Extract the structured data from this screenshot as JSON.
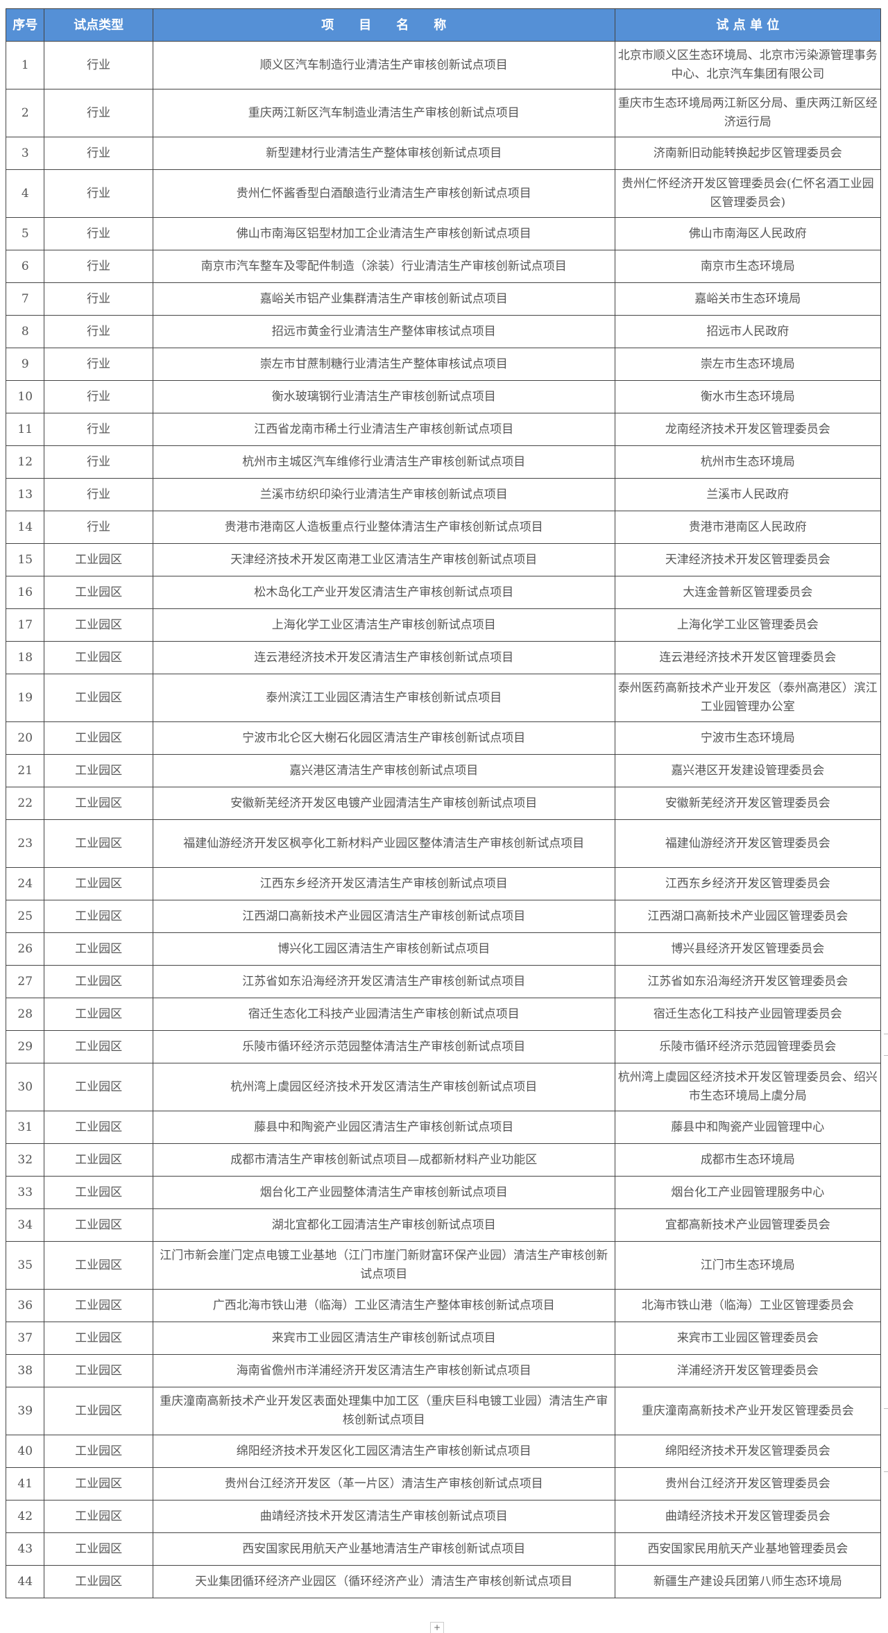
{
  "colors": {
    "header_bg": "#5590d6",
    "header_text": "#ffffff"
  },
  "header": {
    "index": "序号",
    "type": "试点类型",
    "project": "项　　目　　名　　称",
    "unit": "试 点 单 位"
  },
  "rows": [
    {
      "no": "1",
      "type": "行业",
      "project": "顺义区汽车制造行业清洁生产审核创新试点项目",
      "unit": "北京市顺义区生态环境局、北京市污染源管理事务中心、北京汽车集团有限公司"
    },
    {
      "no": "2",
      "type": "行业",
      "project": "重庆两江新区汽车制造业清洁生产审核创新试点项目",
      "unit": "重庆市生态环境局两江新区分局、重庆两江新区经济运行局"
    },
    {
      "no": "3",
      "type": "行业",
      "project": "新型建材行业清洁生产整体审核创新试点项目",
      "unit": "济南新旧动能转换起步区管理委员会"
    },
    {
      "no": "4",
      "type": "行业",
      "project": "贵州仁怀酱香型白酒酿造行业清洁生产审核创新试点项目",
      "unit": "贵州仁怀经济开发区管理委员会(仁怀名酒工业园区管理委员会)"
    },
    {
      "no": "5",
      "type": "行业",
      "project": "佛山市南海区铝型材加工企业清洁生产审核创新试点项目",
      "unit": "佛山市南海区人民政府"
    },
    {
      "no": "6",
      "type": "行业",
      "project": "南京市汽车整车及零配件制造（涂装）行业清洁生产审核创新试点项目",
      "unit": "南京市生态环境局"
    },
    {
      "no": "7",
      "type": "行业",
      "project": "嘉峪关市铝产业集群清洁生产审核创新试点项目",
      "unit": "嘉峪关市生态环境局"
    },
    {
      "no": "8",
      "type": "行业",
      "project": "招远市黄金行业清洁生产整体审核试点项目",
      "unit": "招远市人民政府"
    },
    {
      "no": "9",
      "type": "行业",
      "project": "崇左市甘蔗制糖行业清洁生产整体审核试点项目",
      "unit": "崇左市生态环境局"
    },
    {
      "no": "10",
      "type": "行业",
      "project": "衡水玻璃钢行业清洁生产审核创新试点项目",
      "unit": "衡水市生态环境局"
    },
    {
      "no": "11",
      "type": "行业",
      "project": "江西省龙南市稀土行业清洁生产审核创新试点项目",
      "unit": "龙南经济技术开发区管理委员会"
    },
    {
      "no": "12",
      "type": "行业",
      "project": "杭州市主城区汽车维修行业清洁生产审核创新试点项目",
      "unit": "杭州市生态环境局"
    },
    {
      "no": "13",
      "type": "行业",
      "project": "兰溪市纺织印染行业清洁生产审核创新试点项目",
      "unit": "兰溪市人民政府"
    },
    {
      "no": "14",
      "type": "行业",
      "project": "贵港市港南区人造板重点行业整体清洁生产审核创新试点项目",
      "unit": "贵港市港南区人民政府"
    },
    {
      "no": "15",
      "type": "工业园区",
      "project": "天津经济技术开发区南港工业区清洁生产审核创新试点项目",
      "unit": "天津经济技术开发区管理委员会"
    },
    {
      "no": "16",
      "type": "工业园区",
      "project": "松木岛化工产业开发区清洁生产审核创新试点项目",
      "unit": "大连金普新区管理委员会"
    },
    {
      "no": "17",
      "type": "工业园区",
      "project": "上海化学工业区清洁生产审核创新试点项目",
      "unit": "上海化学工业区管理委员会"
    },
    {
      "no": "18",
      "type": "工业园区",
      "project": "连云港经济技术开发区清洁生产审核创新试点项目",
      "unit": "连云港经济技术开发区管理委员会"
    },
    {
      "no": "19",
      "type": "工业园区",
      "project": "泰州滨江工业园区清洁生产审核创新试点项目",
      "unit": "泰州医药高新技术产业开发区（泰州高港区）滨江工业园管理办公室"
    },
    {
      "no": "20",
      "type": "工业园区",
      "project": "宁波市北仑区大榭石化园区清洁生产审核创新试点项目",
      "unit": "宁波市生态环境局"
    },
    {
      "no": "21",
      "type": "工业园区",
      "project": "嘉兴港区清洁生产审核创新试点项目",
      "unit": "嘉兴港区开发建设管理委员会"
    },
    {
      "no": "22",
      "type": "工业园区",
      "project": "安徽新芜经济开发区电镀产业园清洁生产审核创新试点项目",
      "unit": "安徽新芜经济开发区管理委员会"
    },
    {
      "no": "23",
      "type": "工业园区",
      "project": "福建仙游经济开发区枫亭化工新材料产业园区整体清洁生产审核创新试点项目",
      "unit": "福建仙游经济开发区管理委员会"
    },
    {
      "no": "24",
      "type": "工业园区",
      "project": "江西东乡经济开发区清洁生产审核创新试点项目",
      "unit": "江西东乡经济开发区管理委员会"
    },
    {
      "no": "25",
      "type": "工业园区",
      "project": "江西湖口高新技术产业园区清洁生产审核创新试点项目",
      "unit": "江西湖口高新技术产业园区管理委员会"
    },
    {
      "no": "26",
      "type": "工业园区",
      "project": "博兴化工园区清洁生产审核创新试点项目",
      "unit": "博兴县经济开发区管理委员会"
    },
    {
      "no": "27",
      "type": "工业园区",
      "project": "江苏省如东沿海经济开发区清洁生产审核创新试点项目",
      "unit": "江苏省如东沿海经济开发区管理委员会"
    },
    {
      "no": "28",
      "type": "工业园区",
      "project": "宿迁生态化工科技产业园清洁生产审核创新试点项目",
      "unit": "宿迁生态化工科技产业园管理委员会"
    },
    {
      "no": "29",
      "type": "工业园区",
      "project": "乐陵市循环经济示范园整体清洁生产审核创新试点项目",
      "unit": "乐陵市循环经济示范园管理委员会"
    },
    {
      "no": "30",
      "type": "工业园区",
      "project": "杭州湾上虞园区经济技术开发区清洁生产审核创新试点项目",
      "unit": "杭州湾上虞园区经济技术开发区管理委员会、绍兴市生态环境局上虞分局"
    },
    {
      "no": "31",
      "type": "工业园区",
      "project": "藤县中和陶瓷产业园区清洁生产审核创新试点项目",
      "unit": "藤县中和陶瓷产业园管理中心"
    },
    {
      "no": "32",
      "type": "工业园区",
      "project": "成都市清洁生产审核创新试点项目—成都新材料产业功能区",
      "unit": "成都市生态环境局"
    },
    {
      "no": "33",
      "type": "工业园区",
      "project": "烟台化工产业园整体清洁生产审核创新试点项目",
      "unit": "烟台化工产业园管理服务中心"
    },
    {
      "no": "34",
      "type": "工业园区",
      "project": "湖北宜都化工园清洁生产审核创新试点项目",
      "unit": "宜都高新技术产业园管理委员会"
    },
    {
      "no": "35",
      "type": "工业园区",
      "project": "江门市新会崖门定点电镀工业基地（江门市崖门新财富环保产业园）清洁生产审核创新试点项目",
      "unit": "江门市生态环境局"
    },
    {
      "no": "36",
      "type": "工业园区",
      "project": "广西北海市铁山港（临海）工业区清洁生产整体审核创新试点项目",
      "unit": "北海市铁山港（临海）工业区管理委员会"
    },
    {
      "no": "37",
      "type": "工业园区",
      "project": "来宾市工业园区清洁生产审核创新试点项目",
      "unit": "来宾市工业园区管理委员会"
    },
    {
      "no": "38",
      "type": "工业园区",
      "project": "海南省儋州市洋浦经济开发区清洁生产审核创新试点项目",
      "unit": "洋浦经济开发区管理委员会"
    },
    {
      "no": "39",
      "type": "工业园区",
      "project": "重庆潼南高新技术产业开发区表面处理集中加工区（重庆巨科电镀工业园）清洁生产审核创新试点项目",
      "unit": "重庆潼南高新技术产业开发区管理委员会"
    },
    {
      "no": "40",
      "type": "工业园区",
      "project": "绵阳经济技术开发区化工园区清洁生产审核创新试点项目",
      "unit": "绵阳经济技术开发区管理委员会"
    },
    {
      "no": "41",
      "type": "工业园区",
      "project": "贵州台江经济开发区（革一片区）清洁生产审核创新试点项目",
      "unit": "贵州台江经济开发区管理委员会"
    },
    {
      "no": "42",
      "type": "工业园区",
      "project": "曲靖经济技术开发区清洁生产审核创新试点项目",
      "unit": "曲靖经济技术开发区管理委员会"
    },
    {
      "no": "43",
      "type": "工业园区",
      "project": "西安国家民用航天产业基地清洁生产审核创新试点项目",
      "unit": "西安国家民用航天产业基地管理委员会"
    },
    {
      "no": "44",
      "type": "工业园区",
      "project": "天业集团循环经济产业园区（循环经济产业）清洁生产审核创新试点项目",
      "unit": "新疆生产建设兵团第八师生态环境局"
    }
  ],
  "footer": {
    "add_label": "+"
  }
}
